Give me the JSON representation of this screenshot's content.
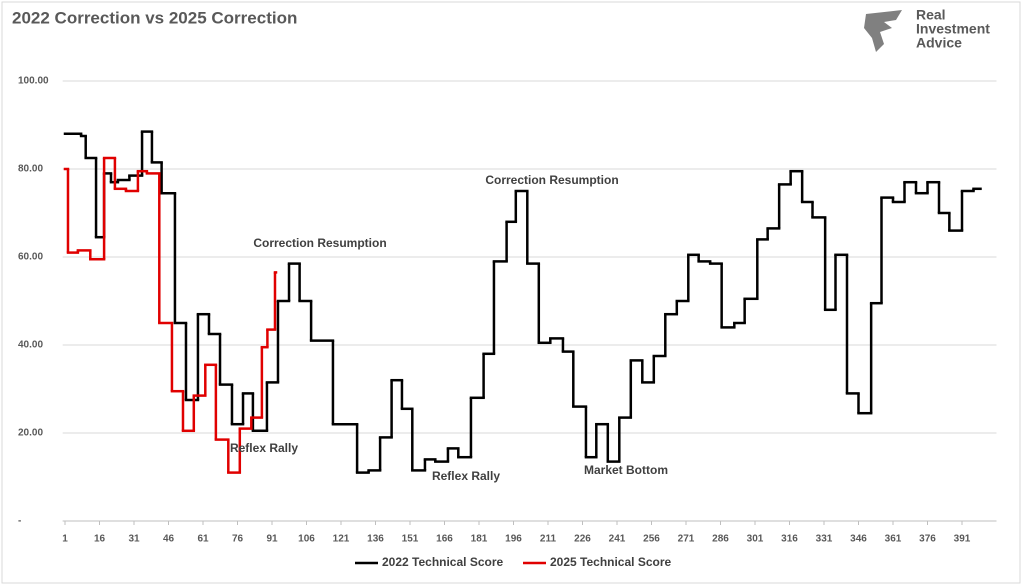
{
  "brand": [
    "Real",
    "Investment",
    "Advice"
  ],
  "chart_data": {
    "type": "line",
    "title": "2022 Correction vs 2025 Correction",
    "step": true,
    "grid": true,
    "xlim": [
      0,
      406
    ],
    "xticks": [
      1,
      16,
      31,
      46,
      61,
      76,
      91,
      106,
      121,
      136,
      151,
      166,
      181,
      196,
      211,
      226,
      241,
      256,
      271,
      286,
      301,
      316,
      331,
      346,
      361,
      376,
      391
    ],
    "ylim": [
      0,
      100
    ],
    "yticks": [
      {
        "value": 0,
        "label": "-"
      },
      {
        "value": 20,
        "label": "20.00"
      },
      {
        "value": 40,
        "label": "40.00"
      },
      {
        "value": 60,
        "label": "60.00"
      },
      {
        "value": 80,
        "label": "80.00"
      },
      {
        "value": 100,
        "label": "100.00"
      }
    ],
    "annotations": [
      "Correction Resumption",
      "Correction Resumption",
      "Reflex Rally",
      "Reflex Rally",
      "Market Bottom"
    ],
    "series": [
      {
        "name": "2022 Technical Score",
        "color": "#000000",
        "x": [
          1,
          8,
          10,
          14.5,
          18,
          21,
          24,
          29,
          34.5,
          38.8,
          43,
          48.8,
          53.6,
          58.8,
          63.6,
          68.4,
          73.6,
          78.4,
          82.7,
          88.8,
          93.6,
          98.4,
          103,
          108,
          117.5,
          128,
          133,
          138,
          143,
          147.5,
          152,
          157.5,
          162,
          167.5,
          172,
          177.5,
          183,
          187.5,
          193,
          197,
          202,
          207,
          212,
          217.5,
          222,
          227.5,
          232,
          237,
          242,
          247,
          252,
          257,
          262,
          267,
          272,
          276.5,
          281.5,
          286.5,
          292,
          296.5,
          302,
          306.5,
          311.5,
          316.5,
          321.5,
          326,
          331.5,
          336,
          341,
          346,
          351.5,
          356,
          361,
          366,
          371,
          376,
          381,
          385.5,
          391,
          396
        ],
        "values": [
          88,
          87.5,
          82.5,
          64.5,
          79,
          77,
          77.5,
          78.5,
          88.5,
          81.5,
          74.5,
          45,
          27.5,
          47,
          42.5,
          31,
          22,
          29,
          20.5,
          31.5,
          50,
          58.5,
          50,
          41,
          22,
          11,
          11.5,
          19,
          32,
          25.5,
          11.5,
          14,
          13.5,
          16.5,
          14.5,
          28,
          38,
          59,
          68,
          75,
          58.5,
          40.5,
          41.5,
          38.5,
          26,
          14.5,
          22,
          13.5,
          23.5,
          36.5,
          31.5,
          37.5,
          47,
          50,
          60.5,
          59,
          58.5,
          44,
          45,
          50.5,
          64,
          66.5,
          76.5,
          79.5,
          72.5,
          69,
          48,
          60.5,
          29,
          24.5,
          49.5,
          73.5,
          72.5,
          77,
          74.5,
          77,
          70,
          66,
          75,
          75.5
        ]
      },
      {
        "name": "2025 Technical Score",
        "color": "#e00000",
        "x": [
          1,
          2.3,
          6.6,
          12,
          18,
          22.7,
          27.5,
          32.7,
          36.6,
          42,
          47.5,
          52.3,
          57,
          62,
          66.6,
          72,
          77,
          82,
          86.6,
          89,
          92.3
        ],
        "values": [
          80,
          61,
          61.5,
          59.5,
          82.5,
          75.5,
          75,
          79.5,
          79,
          45,
          29.5,
          20.5,
          28.5,
          35.5,
          18.5,
          11,
          21,
          23.5,
          39.5,
          43.5,
          56.5
        ]
      }
    ]
  }
}
